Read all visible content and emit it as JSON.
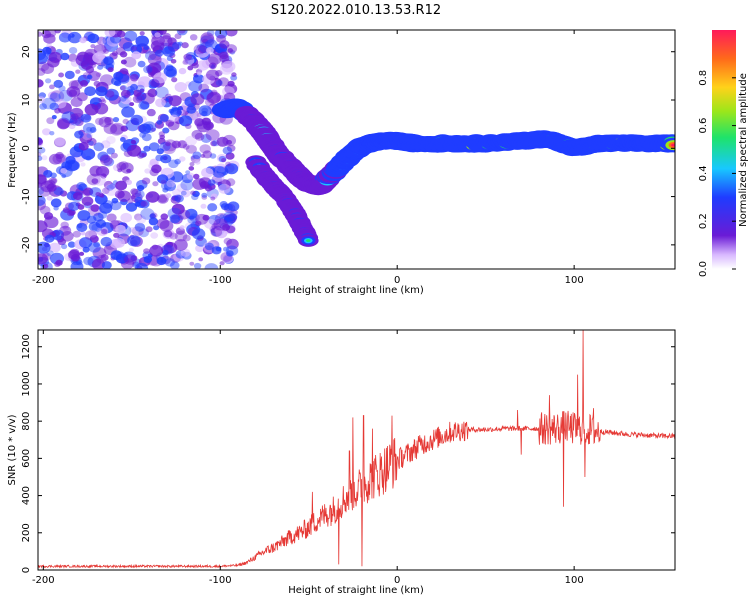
{
  "figure_title": "S120.2022.010.13.53.R12",
  "colors": {
    "snr_line": "#e53935",
    "spectrogram_core": "#ff1a3c",
    "noise_purple": "#7b1fd6"
  },
  "chart_data": [
    {
      "type": "heatmap",
      "title": "S120.2022.010.13.53.R12",
      "xlabel": "Height of straight line (km)",
      "ylabel": "Frequency (Hz)",
      "xlim": [
        -203,
        157
      ],
      "ylim": [
        -25,
        24.5
      ],
      "xticks": [
        -200,
        -100,
        0,
        100
      ],
      "xtick_labels": [
        "-200",
        "-100",
        "0",
        "100"
      ],
      "yticks": [
        20,
        10,
        0,
        -10,
        -20
      ],
      "ytick_labels": [
        "20",
        "10",
        "0",
        "-10",
        "-20"
      ],
      "colorbar": {
        "label": "Normalized spectral amplitude",
        "range": [
          0,
          1
        ],
        "ticks": [
          0.0,
          0.2,
          0.4,
          0.6,
          0.8
        ],
        "tick_labels": [
          "0.0",
          "0.2",
          "0.4",
          "0.6",
          "0.8"
        ]
      },
      "noise_region_x": [
        -203,
        -92
      ],
      "signal_track": [
        {
          "x": -98,
          "y": 8,
          "a": 0.6
        },
        {
          "x": -90,
          "y": 8.5,
          "a": 0.75
        },
        {
          "x": -82,
          "y": 6,
          "a": 0.45
        },
        {
          "x": -75,
          "y": 3,
          "a": 0.5
        },
        {
          "x": -68,
          "y": -1,
          "a": 0.45
        },
        {
          "x": -60,
          "y": -4,
          "a": 0.4
        },
        {
          "x": -52,
          "y": -7,
          "a": 0.45
        },
        {
          "x": -44,
          "y": -8,
          "a": 0.5
        },
        {
          "x": -36,
          "y": -5,
          "a": 0.55
        },
        {
          "x": -28,
          "y": -2,
          "a": 0.65
        },
        {
          "x": -20,
          "y": 0.5,
          "a": 0.7
        },
        {
          "x": -10,
          "y": 1.5,
          "a": 0.75
        },
        {
          "x": 0,
          "y": 1.5,
          "a": 0.8
        },
        {
          "x": 10,
          "y": 1,
          "a": 0.95
        },
        {
          "x": 30,
          "y": 1,
          "a": 0.95
        },
        {
          "x": 50,
          "y": 1,
          "a": 0.95
        },
        {
          "x": 70,
          "y": 1.5,
          "a": 0.9
        },
        {
          "x": 85,
          "y": 2,
          "a": 0.85
        },
        {
          "x": 100,
          "y": 0,
          "a": 0.8
        },
        {
          "x": 115,
          "y": 1,
          "a": 0.9
        },
        {
          "x": 135,
          "y": 1,
          "a": 0.95
        },
        {
          "x": 157,
          "y": 1,
          "a": 0.95
        }
      ],
      "secondary_track": [
        {
          "x": -80,
          "y": -3
        },
        {
          "x": -72,
          "y": -7
        },
        {
          "x": -64,
          "y": -10
        },
        {
          "x": -57,
          "y": -14
        },
        {
          "x": -50,
          "y": -19
        }
      ]
    },
    {
      "type": "line",
      "xlabel": "Height of straight line (km)",
      "ylabel": "SNR (10 * v/v)",
      "xlim": [
        -203,
        157
      ],
      "ylim": [
        0,
        1290
      ],
      "xticks": [
        -200,
        -100,
        0,
        100
      ],
      "xtick_labels": [
        "-200",
        "-100",
        "0",
        "100"
      ],
      "yticks": [
        0,
        200,
        400,
        600,
        800,
        1000,
        1200
      ],
      "ytick_labels": [
        "0",
        "200",
        "400",
        "600",
        "800",
        "1000",
        "1200"
      ],
      "series": [
        {
          "name": "SNR",
          "x": [
            -203,
            -180,
            -160,
            -140,
            -120,
            -100,
            -90,
            -85,
            -80,
            -75,
            -70,
            -65,
            -60,
            -55,
            -50,
            -45,
            -40,
            -35,
            -30,
            -25,
            -20,
            -15,
            -10,
            -5,
            0,
            5,
            10,
            15,
            20,
            25,
            30,
            35,
            40,
            50,
            60,
            70,
            80,
            90,
            95,
            100,
            105,
            110,
            120,
            130,
            140,
            150,
            157
          ],
          "values": [
            20,
            20,
            20,
            20,
            20,
            20,
            25,
            40,
            70,
            100,
            120,
            150,
            180,
            200,
            230,
            270,
            300,
            330,
            380,
            420,
            450,
            490,
            520,
            560,
            590,
            620,
            650,
            680,
            700,
            720,
            740,
            750,
            755,
            755,
            760,
            760,
            760,
            760,
            770,
            760,
            760,
            750,
            740,
            730,
            725,
            720,
            720
          ]
        }
      ],
      "spikes": [
        {
          "x": -48,
          "y": 420
        },
        {
          "x": -38,
          "y": 350
        },
        {
          "x": -27,
          "y": 640
        },
        {
          "x": -25,
          "y": 820
        },
        {
          "x": -19,
          "y": 830
        },
        {
          "x": -14,
          "y": 760
        },
        {
          "x": -3,
          "y": 830
        },
        {
          "x": 12,
          "y": 720
        },
        {
          "x": 68,
          "y": 860
        },
        {
          "x": 86,
          "y": 940
        },
        {
          "x": 94,
          "y": 1240
        },
        {
          "x": 102,
          "y": 1050
        },
        {
          "x": 105,
          "y": 1290
        },
        {
          "x": 111,
          "y": 870
        }
      ],
      "dips": [
        {
          "x": -33,
          "y": 30
        },
        {
          "x": -20,
          "y": 20
        },
        {
          "x": 70,
          "y": 620
        },
        {
          "x": 94,
          "y": 340
        },
        {
          "x": 106,
          "y": 500
        }
      ]
    }
  ]
}
